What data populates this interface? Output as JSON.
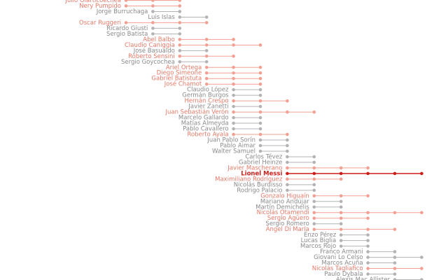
{
  "chart_data": {
    "type": "dumbbell",
    "rows": [
      {
        "name": "Julio Olarticoechea",
        "first": 0,
        "last": 2,
        "color": "#f2a093"
      },
      {
        "name": "Nery Pumpido",
        "first": 0,
        "last": 2,
        "color": "#f2a093"
      },
      {
        "name": "Jorge Burruchaga",
        "first": 1,
        "last": 2,
        "color": "#b3b3b3"
      },
      {
        "name": "Luis Islas",
        "first": 2,
        "last": 3,
        "color": "#b3b3b3"
      },
      {
        "name": "Oscar Ruggeri",
        "first": 0,
        "last": 3,
        "color": "#f2a093"
      },
      {
        "name": "Ricardo Giusti",
        "first": 1,
        "last": 2,
        "color": "#b3b3b3"
      },
      {
        "name": "Sergio Batista",
        "first": 1,
        "last": 2,
        "color": "#b3b3b3"
      },
      {
        "name": "Abel Balbo",
        "first": 2,
        "last": 4,
        "color": "#f2a093"
      },
      {
        "name": "Claudio Caniggia",
        "first": 2,
        "last": 5,
        "color": "#f2a093"
      },
      {
        "name": "José Basualdo",
        "first": 2,
        "last": 3,
        "color": "#b3b3b3"
      },
      {
        "name": "Roberto Sensini",
        "first": 2,
        "last": 4,
        "color": "#f2a093"
      },
      {
        "name": "Sergio Goycochea",
        "first": 2,
        "last": 3,
        "color": "#b3b3b3"
      },
      {
        "name": "Ariel Ortega",
        "first": 3,
        "last": 5,
        "color": "#f2a093"
      },
      {
        "name": "Diego Simeone",
        "first": 3,
        "last": 5,
        "color": "#f2a093"
      },
      {
        "name": "Gabriel Batistuta",
        "first": 3,
        "last": 5,
        "color": "#f2a093"
      },
      {
        "name": "José Chamot",
        "first": 3,
        "last": 5,
        "color": "#f2a093"
      },
      {
        "name": "Claudio López",
        "first": 4,
        "last": 5,
        "color": "#b3b3b3"
      },
      {
        "name": "Germán Burgos",
        "first": 4,
        "last": 5,
        "color": "#b3b3b3"
      },
      {
        "name": "Hernán Crespo",
        "first": 4,
        "last": 6,
        "color": "#f2a093"
      },
      {
        "name": "Javier Zanetti",
        "first": 4,
        "last": 5,
        "color": "#b3b3b3"
      },
      {
        "name": "Juan Sebastián Verón",
        "first": 4,
        "last": 7,
        "color": "#f2a093"
      },
      {
        "name": "Marcelo Gallardo",
        "first": 4,
        "last": 5,
        "color": "#b3b3b3"
      },
      {
        "name": "Matías Almeyda",
        "first": 4,
        "last": 5,
        "color": "#b3b3b3"
      },
      {
        "name": "Pablo Cavallero",
        "first": 4,
        "last": 5,
        "color": "#b3b3b3"
      },
      {
        "name": "Roberto Ayala",
        "first": 4,
        "last": 6,
        "color": "#f2a093"
      },
      {
        "name": "Juan Pablo Sorín",
        "first": 5,
        "last": 6,
        "color": "#b3b3b3"
      },
      {
        "name": "Pablo Aimar",
        "first": 5,
        "last": 6,
        "color": "#b3b3b3"
      },
      {
        "name": "Walter Samuel",
        "first": 5,
        "last": 6,
        "color": "#b3b3b3"
      },
      {
        "name": "Carlos Tévez",
        "first": 6,
        "last": 7,
        "color": "#b3b3b3"
      },
      {
        "name": "Gabriel Heinze",
        "first": 6,
        "last": 7,
        "color": "#b3b3b3"
      },
      {
        "name": "Javier Mascherano",
        "first": 6,
        "last": 9,
        "color": "#f2a093"
      },
      {
        "name": "Lionel Messi",
        "first": 6,
        "last": 11,
        "color": "#cc1f1a",
        "bold": true
      },
      {
        "name": "Maximiliano Rodríguez",
        "first": 6,
        "last": 8,
        "color": "#f2a093"
      },
      {
        "name": "Nicolás Burdisso",
        "first": 6,
        "last": 7,
        "color": "#b3b3b3"
      },
      {
        "name": "Rodrigo Palacio",
        "first": 6,
        "last": 7,
        "color": "#b3b3b3"
      },
      {
        "name": "Gonzalo Higuaín",
        "first": 7,
        "last": 9,
        "color": "#f2a093"
      },
      {
        "name": "Mariano Andújar",
        "first": 7,
        "last": 8,
        "color": "#b3b3b3"
      },
      {
        "name": "Martín Demichelis",
        "first": 7,
        "last": 8,
        "color": "#b3b3b3"
      },
      {
        "name": "Nicolás Otamendi",
        "first": 7,
        "last": 11,
        "color": "#f2a093"
      },
      {
        "name": "Sergio Agüero",
        "first": 7,
        "last": 9,
        "color": "#f2a093"
      },
      {
        "name": "Sergio Romero",
        "first": 7,
        "last": 8,
        "color": "#b3b3b3"
      },
      {
        "name": "Ángel Di María",
        "first": 7,
        "last": 10,
        "color": "#f2a093"
      },
      {
        "name": "Enzo Pérez",
        "first": 8,
        "last": 9,
        "color": "#b3b3b3"
      },
      {
        "name": "Lucas Biglia",
        "first": 8,
        "last": 9,
        "color": "#b3b3b3"
      },
      {
        "name": "Marcos Rojo",
        "first": 8,
        "last": 9,
        "color": "#b3b3b3"
      },
      {
        "name": "Franco Armani",
        "first": 9,
        "last": 10,
        "color": "#b3b3b3"
      },
      {
        "name": "Giovani Lo Celso",
        "first": 9,
        "last": 11,
        "color": "#b3b3b3"
      },
      {
        "name": "Marcos Acuña",
        "first": 9,
        "last": 10,
        "color": "#b3b3b3"
      },
      {
        "name": "Nicolás Tagliafico",
        "first": 9,
        "last": 11,
        "color": "#f2a093"
      },
      {
        "name": "Paulo Dybala",
        "first": 9,
        "last": 10,
        "color": "#b3b3b3"
      },
      {
        "name": "Alexis Mac Allister",
        "first": 10,
        "last": 11,
        "color": "#b3b3b3"
      }
    ]
  }
}
